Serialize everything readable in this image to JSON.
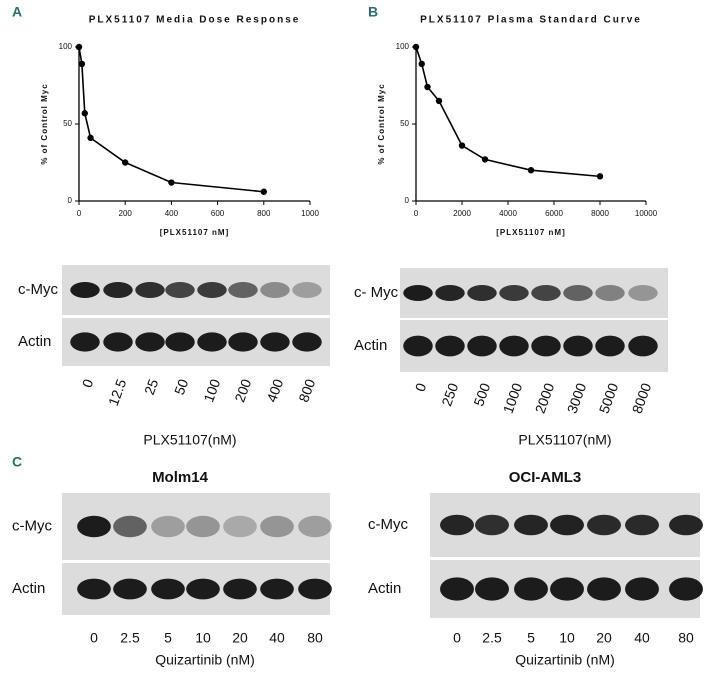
{
  "panel_labels": [
    "A",
    "B",
    "C"
  ],
  "chart_data": [
    {
      "type": "line",
      "title": "PLX51107 Media Dose Response",
      "xlabel": "[PLX51107 nM]",
      "ylabel": "% of Control Myc",
      "x": [
        0,
        12.5,
        25,
        50,
        200,
        400,
        800
      ],
      "values": [
        100,
        89,
        57,
        41,
        25,
        12,
        6
      ],
      "color": "#000000",
      "xlim": [
        0,
        1000
      ],
      "xticks": [
        0,
        200,
        400,
        600,
        800,
        1000
      ],
      "ylim": [
        0,
        100
      ],
      "yticks": [
        0,
        50,
        100
      ]
    },
    {
      "type": "line",
      "title": "PLX51107 Plasma Standard Curve",
      "xlabel": "[PLX51107 nM]",
      "ylabel": "% of Control Myc",
      "x": [
        0,
        250,
        500,
        1000,
        2000,
        3000,
        5000,
        8000
      ],
      "values": [
        100,
        89,
        74,
        65,
        36,
        27,
        20,
        16
      ],
      "color": "#000000",
      "xlim": [
        0,
        10000
      ],
      "xticks": [
        0,
        2000,
        4000,
        6000,
        8000,
        10000
      ],
      "ylim": [
        0,
        100
      ],
      "yticks": [
        0,
        50,
        100
      ]
    }
  ],
  "blots": [
    {
      "rows": [
        "c-Myc",
        "Actin"
      ],
      "lanes": [
        "0",
        "12.5",
        "25",
        "50",
        "100",
        "200",
        "400",
        "800"
      ],
      "xlabel": "PLX51107(nM)"
    },
    {
      "rows": [
        "c- Myc",
        "Actin"
      ],
      "lanes": [
        "0",
        "250",
        "500",
        "1000",
        "2000",
        "3000",
        "5000",
        "8000"
      ],
      "xlabel": "PLX51107(nM)"
    },
    {
      "title": "Molm14",
      "rows": [
        "c-Myc",
        "Actin"
      ],
      "lanes": [
        "0",
        "2.5",
        "5",
        "10",
        "20",
        "40",
        "80"
      ],
      "xlabel": "Quizartinib (nM)"
    },
    {
      "title": "OCI-AML3",
      "rows": [
        "c-Myc",
        "Actin"
      ],
      "lanes": [
        "0",
        "2.5",
        "5",
        "10",
        "20",
        "40",
        "80"
      ],
      "xlabel": "Quizartinib (nM)"
    }
  ]
}
